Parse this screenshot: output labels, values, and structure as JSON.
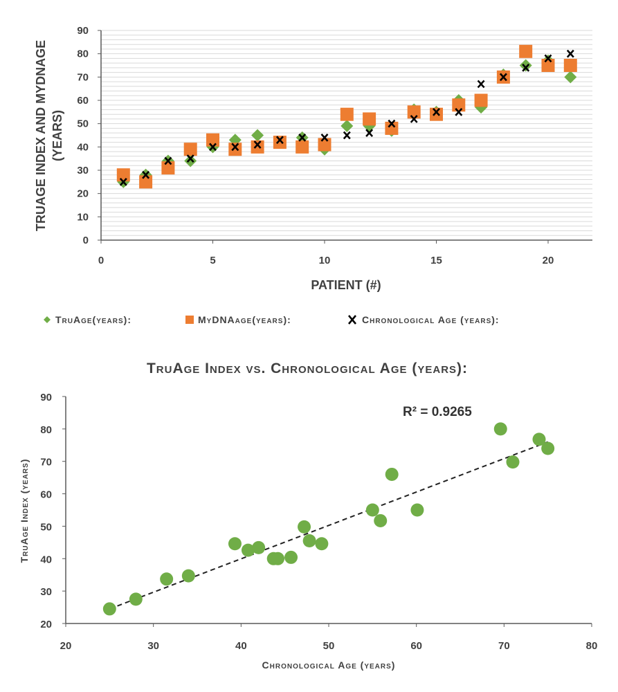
{
  "chart_data": [
    {
      "type": "scatter",
      "title": "",
      "xlabel": "Patient (#)",
      "ylabel": "TruAge Index and MyDNAge (years)",
      "xlim": [
        0,
        22
      ],
      "ylim": [
        0,
        90
      ],
      "xticks": [
        "0",
        "5",
        "10",
        "15",
        "20"
      ],
      "yticks": [
        "0",
        "10",
        "20",
        "30",
        "40",
        "50",
        "60",
        "70",
        "80",
        "90"
      ],
      "grid": true,
      "legend_position": "bottom",
      "series": [
        {
          "name": "TruAge(years):",
          "marker": "diamond",
          "color": "#70ad47",
          "x": [
            1,
            2,
            3,
            4,
            5,
            6,
            7,
            8,
            9,
            10,
            11,
            12,
            13,
            14,
            15,
            16,
            17,
            18,
            19,
            20,
            21
          ],
          "y": [
            25,
            28,
            34,
            34,
            40,
            43,
            45,
            42,
            44,
            39,
            49,
            49,
            47,
            56,
            55,
            60,
            57,
            71,
            75,
            77,
            70
          ]
        },
        {
          "name": "MyDNAage(years):",
          "marker": "square",
          "color": "#ed7d31",
          "x": [
            1,
            2,
            3,
            4,
            5,
            6,
            7,
            8,
            9,
            10,
            11,
            12,
            13,
            14,
            15,
            16,
            17,
            18,
            19,
            20,
            21
          ],
          "y": [
            28,
            25,
            31,
            39,
            43,
            39,
            40,
            42,
            40,
            41,
            54,
            52,
            48,
            55,
            54,
            58,
            60,
            70,
            81,
            75,
            75
          ]
        },
        {
          "name": "Chronological Age (years):",
          "marker": "x",
          "color": "#000000",
          "x": [
            1,
            2,
            3,
            4,
            5,
            6,
            7,
            8,
            9,
            10,
            11,
            12,
            13,
            14,
            15,
            16,
            17,
            18,
            19,
            20,
            21
          ],
          "y": [
            25,
            28,
            34,
            35,
            40,
            40,
            41,
            43,
            44,
            44,
            45,
            46,
            50,
            52,
            55,
            55,
            67,
            70,
            74,
            78,
            80
          ]
        }
      ]
    },
    {
      "type": "scatter",
      "title": "TruAge Index vs. Chronological Age (years):",
      "xlabel": "Chronological Age (years)",
      "ylabel": "TruAge Index (years)",
      "xlim": [
        20,
        80
      ],
      "ylim": [
        20,
        90
      ],
      "xticks": [
        "20",
        "30",
        "40",
        "50",
        "60",
        "70",
        "80"
      ],
      "yticks": [
        "20",
        "30",
        "40",
        "50",
        "60",
        "70",
        "80",
        "90"
      ],
      "grid": false,
      "annotation": "R² = 0.9265",
      "trendline": {
        "style": "dashed",
        "x": [
          25,
          75
        ],
        "y": [
          24.5,
          76
        ]
      },
      "series": [
        {
          "name": "",
          "marker": "circle",
          "color": "#70ad47",
          "x": [
            25,
            28,
            31.5,
            34,
            39.3,
            40.8,
            42,
            43.7,
            44.2,
            45.7,
            47.2,
            47.8,
            49.2,
            55,
            55.9,
            57.2,
            60.1,
            69.6,
            71,
            74,
            75
          ],
          "y": [
            24.5,
            27.5,
            33.7,
            34.7,
            44.6,
            42.6,
            43.4,
            40,
            40,
            40.4,
            49.8,
            45.5,
            44.6,
            55,
            51.7,
            66,
            55,
            80,
            69.8,
            76.8,
            74
          ]
        }
      ]
    }
  ]
}
